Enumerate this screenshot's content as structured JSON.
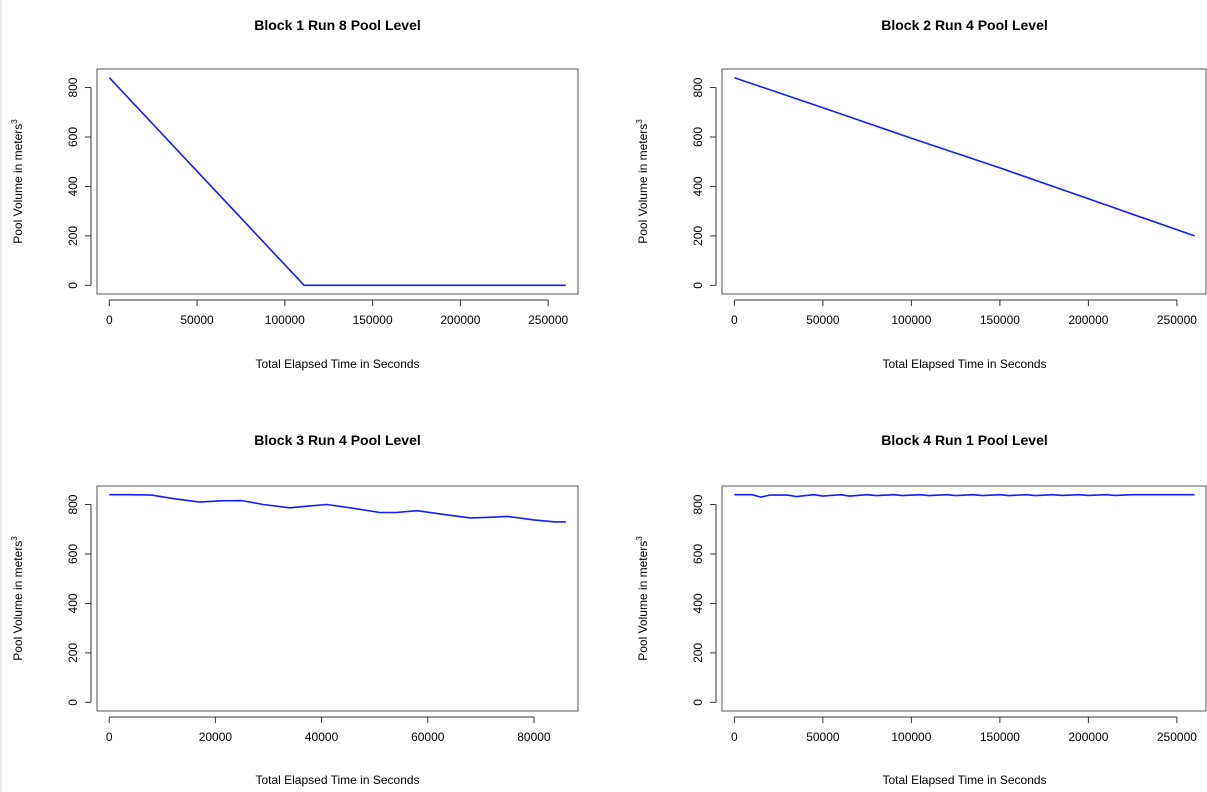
{
  "chart_data": [
    {
      "type": "line",
      "title": "Block 1 Run 8 Pool Level",
      "xlabel": "Total Elapsed Time in Seconds",
      "ylabel": "Pool Volume in meters",
      "ylabel_superscript": "3",
      "xlim": [
        -7000,
        267000
      ],
      "ylim": [
        -35,
        875
      ],
      "xticks": [
        0,
        50000,
        100000,
        150000,
        200000,
        250000
      ],
      "yticks": [
        0,
        200,
        400,
        600,
        800
      ],
      "series": [
        {
          "color": "#1a1aff",
          "x": [
            0,
            111000,
            260000
          ],
          "y": [
            840,
            0,
            0
          ]
        }
      ]
    },
    {
      "type": "line",
      "title": "Block 2 Run 4 Pool Level",
      "xlabel": "Total Elapsed Time in Seconds",
      "ylabel": "Pool Volume in meters",
      "ylabel_superscript": "3",
      "xlim": [
        -7000,
        267000
      ],
      "ylim": [
        -35,
        875
      ],
      "xticks": [
        0,
        50000,
        100000,
        150000,
        200000,
        250000
      ],
      "yticks": [
        0,
        200,
        400,
        600,
        800
      ],
      "series": [
        {
          "color": "#1a1aff",
          "x": [
            0,
            50000,
            100000,
            150000,
            200000,
            260000
          ],
          "y": [
            840,
            718,
            595,
            475,
            350,
            200
          ]
        }
      ]
    },
    {
      "type": "line",
      "title": "Block 3 Run 4 Pool Level",
      "xlabel": "Total Elapsed Time in Seconds",
      "ylabel": "Pool Volume in meters",
      "ylabel_superscript": "3",
      "xlim": [
        -2300,
        88300
      ],
      "ylim": [
        -35,
        875
      ],
      "xticks": [
        0,
        20000,
        40000,
        60000,
        80000
      ],
      "yticks": [
        0,
        200,
        400,
        600,
        800
      ],
      "series": [
        {
          "color": "#1a1aff",
          "x": [
            0,
            4000,
            8000,
            12000,
            17000,
            21000,
            25000,
            29000,
            34000,
            38000,
            41000,
            46000,
            51000,
            54000,
            58000,
            63000,
            68000,
            71000,
            75000,
            80000,
            84000,
            86000
          ],
          "y": [
            840,
            840,
            838,
            824,
            810,
            815,
            816,
            800,
            787,
            795,
            800,
            785,
            768,
            768,
            775,
            760,
            746,
            748,
            752,
            738,
            730,
            730
          ]
        }
      ]
    },
    {
      "type": "line",
      "title": "Block 4 Run 1 Pool Level",
      "xlabel": "Total Elapsed Time in Seconds",
      "ylabel": "Pool Volume in meters",
      "ylabel_superscript": "3",
      "xlim": [
        -7000,
        267000
      ],
      "ylim": [
        -35,
        875
      ],
      "xticks": [
        0,
        50000,
        100000,
        150000,
        200000,
        250000
      ],
      "yticks": [
        0,
        200,
        400,
        600,
        800
      ],
      "series": [
        {
          "color": "#1a1aff",
          "x": [
            0,
            10000,
            15000,
            20000,
            30000,
            35000,
            45000,
            50000,
            60000,
            65000,
            75000,
            80000,
            90000,
            95000,
            105000,
            110000,
            120000,
            125000,
            135000,
            140000,
            150000,
            155000,
            165000,
            170000,
            180000,
            185000,
            195000,
            200000,
            210000,
            215000,
            225000,
            230000,
            260000
          ],
          "y": [
            840,
            840,
            830,
            838,
            838,
            832,
            840,
            834,
            840,
            834,
            840,
            836,
            840,
            836,
            840,
            836,
            840,
            836,
            840,
            836,
            840,
            836,
            840,
            836,
            840,
            837,
            840,
            837,
            840,
            837,
            840,
            840,
            840
          ]
        }
      ]
    }
  ]
}
